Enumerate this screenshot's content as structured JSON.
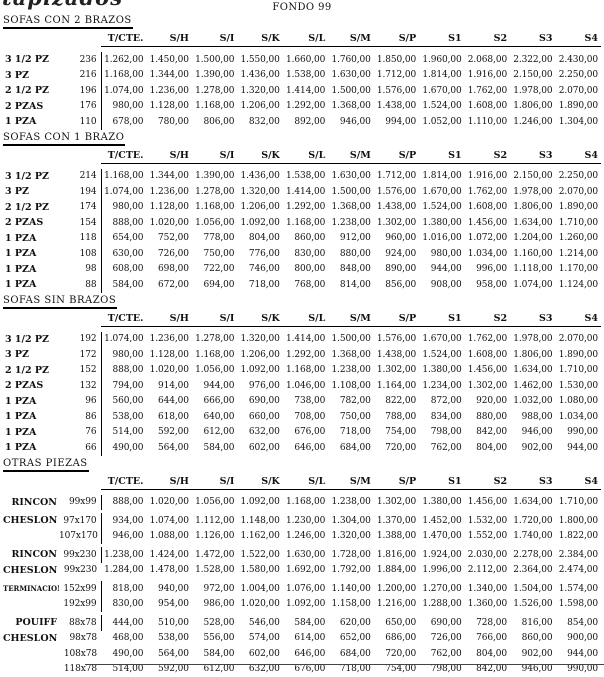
{
  "page": {
    "logo": "tapizados",
    "title": "FONDO 99"
  },
  "columns": [
    "T/CTE.",
    "S/H",
    "S/I",
    "S/K",
    "S/L",
    "S/M",
    "S/P",
    "S1",
    "S2",
    "S3",
    "S4"
  ],
  "sections": [
    {
      "title": "SOFAS CON 2 BRAZOS",
      "rows": [
        {
          "label": "3 1/2 PZ",
          "code": "236",
          "bar": true,
          "prices": [
            "1.262,00",
            "1.450,00",
            "1.500,00",
            "1.550,00",
            "1.660,00",
            "1.760,00",
            "1.850,00",
            "1.960,00",
            "2.068,00",
            "2.322,00",
            "2.430,00"
          ]
        },
        {
          "label": "3 PZ",
          "code": "216",
          "bar": true,
          "prices": [
            "1.168,00",
            "1.344,00",
            "1.390,00",
            "1.436,00",
            "1.538,00",
            "1.630,00",
            "1.712,00",
            "1.814,00",
            "1.916,00",
            "2.150,00",
            "2.250,00"
          ]
        },
        {
          "label": "2 1/2 PZ",
          "code": "196",
          "bar": true,
          "prices": [
            "1.074,00",
            "1.236,00",
            "1.278,00",
            "1.320,00",
            "1.414,00",
            "1.500,00",
            "1.576,00",
            "1.670,00",
            "1.762,00",
            "1.978,00",
            "2.070,00"
          ]
        },
        {
          "label": "2 PZAS",
          "code": "176",
          "bar": true,
          "prices": [
            "980,00",
            "1.128,00",
            "1.168,00",
            "1.206,00",
            "1.292,00",
            "1.368,00",
            "1.438,00",
            "1.524,00",
            "1.608,00",
            "1.806,00",
            "1.890,00"
          ]
        },
        {
          "label": "1 PZA",
          "code": "110",
          "bar": true,
          "prices": [
            "678,00",
            "780,00",
            "806,00",
            "832,00",
            "892,00",
            "946,00",
            "994,00",
            "1.052,00",
            "1.110,00",
            "1.246,00",
            "1.304,00"
          ]
        }
      ]
    },
    {
      "title": "SOFAS CON 1 BRAZO",
      "rows": [
        {
          "label": "3 1/2 PZ",
          "code": "214",
          "bar": true,
          "prices": [
            "1.168,00",
            "1.344,00",
            "1.390,00",
            "1.436,00",
            "1.538,00",
            "1.630,00",
            "1.712,00",
            "1.814,00",
            "1.916,00",
            "2.150,00",
            "2.250,00"
          ]
        },
        {
          "label": "3 PZ",
          "code": "194",
          "bar": true,
          "prices": [
            "1.074,00",
            "1.236,00",
            "1.278,00",
            "1.320,00",
            "1.414,00",
            "1.500,00",
            "1.576,00",
            "1.670,00",
            "1.762,00",
            "1.978,00",
            "2.070,00"
          ]
        },
        {
          "label": "2 1/2 PZ",
          "code": "174",
          "bar": true,
          "prices": [
            "980,00",
            "1.128,00",
            "1.168,00",
            "1.206,00",
            "1.292,00",
            "1.368,00",
            "1.438,00",
            "1.524,00",
            "1.608,00",
            "1.806,00",
            "1.890,00"
          ]
        },
        {
          "label": "2 PZAS",
          "code": "154",
          "bar": true,
          "prices": [
            "888,00",
            "1.020,00",
            "1.056,00",
            "1.092,00",
            "1.168,00",
            "1.238,00",
            "1.302,00",
            "1.380,00",
            "1.456,00",
            "1.634,00",
            "1.710,00"
          ]
        },
        {
          "label": "1 PZA",
          "code": "118",
          "bar": true,
          "prices": [
            "654,00",
            "752,00",
            "778,00",
            "804,00",
            "860,00",
            "912,00",
            "960,00",
            "1.016,00",
            "1.072,00",
            "1.204,00",
            "1.260,00"
          ]
        },
        {
          "label": "1 PZA",
          "code": "108",
          "bar": true,
          "prices": [
            "630,00",
            "726,00",
            "750,00",
            "776,00",
            "830,00",
            "880,00",
            "924,00",
            "980,00",
            "1.034,00",
            "1.160,00",
            "1.214,00"
          ]
        },
        {
          "label": "1 PZA",
          "code": "98",
          "bar": true,
          "prices": [
            "608,00",
            "698,00",
            "722,00",
            "746,00",
            "800,00",
            "848,00",
            "890,00",
            "944,00",
            "996,00",
            "1.118,00",
            "1.170,00"
          ]
        },
        {
          "label": "1 PZA",
          "code": "88",
          "bar": true,
          "prices": [
            "584,00",
            "672,00",
            "694,00",
            "718,00",
            "768,00",
            "814,00",
            "856,00",
            "908,00",
            "958,00",
            "1.074,00",
            "1.124,00"
          ]
        }
      ]
    },
    {
      "title": "SOFAS SIN BRAZOS",
      "rows": [
        {
          "label": "3 1/2 PZ",
          "code": "192",
          "bar": true,
          "prices": [
            "1.074,00",
            "1.236,00",
            "1.278,00",
            "1.320,00",
            "1.414,00",
            "1.500,00",
            "1.576,00",
            "1.670,00",
            "1.762,00",
            "1.978,00",
            "2.070,00"
          ]
        },
        {
          "label": "3 PZ",
          "code": "172",
          "bar": true,
          "prices": [
            "980,00",
            "1.128,00",
            "1.168,00",
            "1.206,00",
            "1.292,00",
            "1.368,00",
            "1.438,00",
            "1.524,00",
            "1.608,00",
            "1.806,00",
            "1.890,00"
          ]
        },
        {
          "label": "2 1/2 PZ",
          "code": "152",
          "bar": true,
          "prices": [
            "888,00",
            "1.020,00",
            "1.056,00",
            "1.092,00",
            "1.168,00",
            "1.238,00",
            "1.302,00",
            "1.380,00",
            "1.456,00",
            "1.634,00",
            "1.710,00"
          ]
        },
        {
          "label": "2 PZAS",
          "code": "132",
          "bar": true,
          "prices": [
            "794,00",
            "914,00",
            "944,00",
            "976,00",
            "1.046,00",
            "1.108,00",
            "1.164,00",
            "1.234,00",
            "1.302,00",
            "1.462,00",
            "1.530,00"
          ]
        },
        {
          "label": "1 PZA",
          "code": "96",
          "bar": true,
          "prices": [
            "560,00",
            "644,00",
            "666,00",
            "690,00",
            "738,00",
            "782,00",
            "822,00",
            "872,00",
            "920,00",
            "1.032,00",
            "1.080,00"
          ]
        },
        {
          "label": "1 PZA",
          "code": "86",
          "bar": true,
          "prices": [
            "538,00",
            "618,00",
            "640,00",
            "660,00",
            "708,00",
            "750,00",
            "788,00",
            "834,00",
            "880,00",
            "988,00",
            "1.034,00"
          ]
        },
        {
          "label": "1 PZA",
          "code": "76",
          "bar": true,
          "prices": [
            "514,00",
            "592,00",
            "612,00",
            "632,00",
            "676,00",
            "718,00",
            "754,00",
            "798,00",
            "842,00",
            "946,00",
            "990,00"
          ]
        },
        {
          "label": "1 PZA",
          "code": "66",
          "bar": true,
          "prices": [
            "490,00",
            "564,00",
            "584,00",
            "602,00",
            "646,00",
            "684,00",
            "720,00",
            "762,00",
            "804,00",
            "902,00",
            "944,00"
          ]
        }
      ]
    },
    {
      "title": "OTRAS PIEZAS",
      "rows": [
        {
          "label": "RINCON",
          "code": "99x99",
          "bar": true,
          "prices": [
            "888,00",
            "1.020,00",
            "1.056,00",
            "1.092,00",
            "1.168,00",
            "1.238,00",
            "1.302,00",
            "1.380,00",
            "1.456,00",
            "1.634,00",
            "1.710,00"
          ]
        },
        {
          "label": "CHESLON",
          "code": "97x170",
          "bar": true,
          "gap_before": true,
          "prices": [
            "934,00",
            "1.074,00",
            "1.112,00",
            "1.148,00",
            "1.230,00",
            "1.304,00",
            "1.370,00",
            "1.452,00",
            "1.532,00",
            "1.720,00",
            "1.800,00"
          ]
        },
        {
          "label": "",
          "code": "107x170",
          "bar": true,
          "prices": [
            "946,00",
            "1.088,00",
            "1.126,00",
            "1.162,00",
            "1.246,00",
            "1.320,00",
            "1.388,00",
            "1.470,00",
            "1.552,00",
            "1.740,00",
            "1.822,00"
          ]
        },
        {
          "label": "RINCON",
          "code": "99x230",
          "bar": true,
          "gap_before": true,
          "prices": [
            "1.238,00",
            "1.424,00",
            "1.472,00",
            "1.522,00",
            "1.630,00",
            "1.728,00",
            "1.816,00",
            "1.924,00",
            "2.030,00",
            "2.278,00",
            "2.384,00"
          ]
        },
        {
          "label": "CHESLON",
          "code": "99x230",
          "bar": false,
          "prices": [
            "1.284,00",
            "1.478,00",
            "1.528,00",
            "1.580,00",
            "1.692,00",
            "1.792,00",
            "1.884,00",
            "1.996,00",
            "2.112,00",
            "2.364,00",
            "2.474,00"
          ]
        },
        {
          "label": "TERMINACION",
          "code": "152x99",
          "bar": true,
          "gap_before": true,
          "prices": [
            "818,00",
            "940,00",
            "972,00",
            "1.004,00",
            "1.076,00",
            "1.140,00",
            "1.200,00",
            "1.270,00",
            "1.340,00",
            "1.504,00",
            "1.574,00"
          ]
        },
        {
          "label": "",
          "code": "192x99",
          "bar": true,
          "prices": [
            "830,00",
            "954,00",
            "986,00",
            "1.020,00",
            "1.092,00",
            "1.158,00",
            "1.216,00",
            "1.288,00",
            "1.360,00",
            "1.526,00",
            "1.598,00"
          ]
        },
        {
          "label": "POUIFF",
          "code": "88x78",
          "bar": true,
          "gap_before": true,
          "prices": [
            "444,00",
            "510,00",
            "528,00",
            "546,00",
            "584,00",
            "620,00",
            "650,00",
            "690,00",
            "728,00",
            "816,00",
            "854,00"
          ]
        },
        {
          "label": "CHESLON",
          "code": "98x78",
          "bar": false,
          "prices": [
            "468,00",
            "538,00",
            "556,00",
            "574,00",
            "614,00",
            "652,00",
            "686,00",
            "726,00",
            "766,00",
            "860,00",
            "900,00"
          ]
        },
        {
          "label": "",
          "code": "108x78",
          "bar": false,
          "prices": [
            "490,00",
            "564,00",
            "584,00",
            "602,00",
            "646,00",
            "684,00",
            "720,00",
            "762,00",
            "804,00",
            "902,00",
            "944,00"
          ]
        },
        {
          "label": "",
          "code": "118x78",
          "bar": false,
          "prices": [
            "514,00",
            "592,00",
            "612,00",
            "632,00",
            "676,00",
            "718,00",
            "754,00",
            "798,00",
            "842,00",
            "946,00",
            "990,00"
          ]
        }
      ]
    }
  ]
}
